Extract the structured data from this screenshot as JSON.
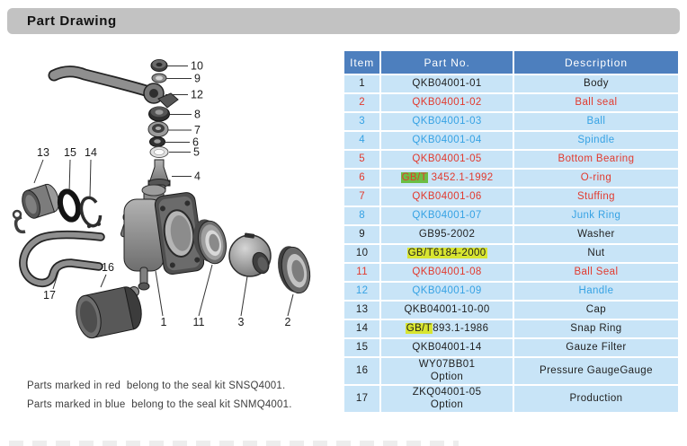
{
  "page": {
    "title": "Part Drawing"
  },
  "colors": {
    "title_bg": "#c2c2c2",
    "table_header_bg": "#4d7fbe",
    "table_row_bg": "#c8e4f7",
    "seal_kit_red": "#e23a2e",
    "seal_kit_blue": "#36a2e4",
    "highlight_green": "#6cbe44",
    "highlight_yellow": "#d8e530"
  },
  "table": {
    "headers": [
      "Item",
      "Part No.",
      "Description"
    ],
    "rows": [
      {
        "item": "1",
        "part_lines": [
          [
            {
              "t": "QKB04001-01"
            }
          ]
        ],
        "desc": "Body",
        "color": "black"
      },
      {
        "item": "2",
        "part_lines": [
          [
            {
              "t": "QKB04001-02"
            }
          ]
        ],
        "desc": "Ball seal",
        "color": "red"
      },
      {
        "item": "3",
        "part_lines": [
          [
            {
              "t": "QKB04001-03"
            }
          ]
        ],
        "desc": "Ball",
        "color": "blue"
      },
      {
        "item": "4",
        "part_lines": [
          [
            {
              "t": "QKB04001-04"
            }
          ]
        ],
        "desc": "Spindle",
        "color": "blue"
      },
      {
        "item": "5",
        "part_lines": [
          [
            {
              "t": "QKB04001-05"
            }
          ]
        ],
        "desc": "Bottom Bearing",
        "color": "red"
      },
      {
        "item": "6",
        "part_lines": [
          [
            {
              "t": "GB/T",
              "hl": "green"
            },
            {
              "t": " 3452.1-1992"
            }
          ]
        ],
        "desc": "O-ring",
        "color": "red"
      },
      {
        "item": "7",
        "part_lines": [
          [
            {
              "t": "QKB04001-06"
            }
          ]
        ],
        "desc": "Stuffing",
        "color": "red"
      },
      {
        "item": "8",
        "part_lines": [
          [
            {
              "t": "QKB04001-07"
            }
          ]
        ],
        "desc": "Junk Ring",
        "color": "blue"
      },
      {
        "item": "9",
        "part_lines": [
          [
            {
              "t": "GB95-2002"
            }
          ]
        ],
        "desc": "Washer",
        "color": "black"
      },
      {
        "item": "10",
        "part_lines": [
          [
            {
              "t": "GB/T6184-2000",
              "hl": "yellow"
            }
          ]
        ],
        "desc": "Nut",
        "color": "black"
      },
      {
        "item": "11",
        "part_lines": [
          [
            {
              "t": "QKB04001-08"
            }
          ]
        ],
        "desc": "Ball Seal",
        "color": "red"
      },
      {
        "item": "12",
        "part_lines": [
          [
            {
              "t": "QKB04001-09"
            }
          ]
        ],
        "desc": "Handle",
        "color": "blue"
      },
      {
        "item": "13",
        "part_lines": [
          [
            {
              "t": "QKB04001-10-00"
            }
          ]
        ],
        "desc": "Cap",
        "color": "black"
      },
      {
        "item": "14",
        "part_lines": [
          [
            {
              "t": "GB/T",
              "hl": "yellow"
            },
            {
              "t": "893.1-1986"
            }
          ]
        ],
        "desc": "Snap Ring",
        "color": "black"
      },
      {
        "item": "15",
        "part_lines": [
          [
            {
              "t": "QKB04001-14"
            }
          ]
        ],
        "desc": "Gauze Filter",
        "color": "black"
      },
      {
        "item": "16",
        "part_lines": [
          [
            {
              "t": "WY07BB01"
            }
          ],
          [
            {
              "t": "Option"
            }
          ]
        ],
        "desc": "Pressure GaugeGauge",
        "color": "black"
      },
      {
        "item": "17",
        "part_lines": [
          [
            {
              "t": "ZKQ04001-05"
            }
          ],
          [
            {
              "t": "Option"
            }
          ]
        ],
        "desc": "Production",
        "color": "black"
      }
    ]
  },
  "notes": {
    "lines": [
      "Parts marked in red  belong to the seal kit SNSQ4001.",
      "Parts marked in blue  belong to the seal kit SNMQ4001."
    ]
  },
  "diagram": {
    "callouts": {
      "c1": "1",
      "c2": "2",
      "c3": "3",
      "c4": "4",
      "c5": "5",
      "c6": "6",
      "c7": "7",
      "c8": "8",
      "c9": "9",
      "c10": "10",
      "c11": "11",
      "c12": "12",
      "c13": "13",
      "c14": "14",
      "c15": "15",
      "c16": "16",
      "c17": "17"
    }
  }
}
